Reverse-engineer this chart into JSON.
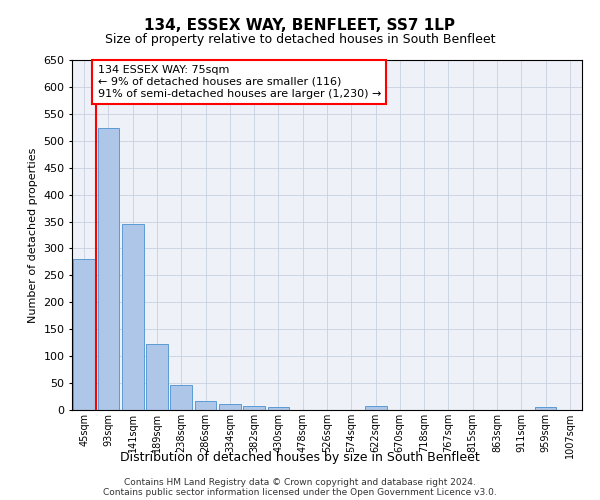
{
  "title": "134, ESSEX WAY, BENFLEET, SS7 1LP",
  "subtitle": "Size of property relative to detached houses in South Benfleet",
  "xlabel": "Distribution of detached houses by size in South Benfleet",
  "ylabel": "Number of detached properties",
  "footer1": "Contains HM Land Registry data © Crown copyright and database right 2024.",
  "footer2": "Contains public sector information licensed under the Open Government Licence v3.0.",
  "annotation_title": "134 ESSEX WAY: 75sqm",
  "annotation_line1": "← 9% of detached houses are smaller (116)",
  "annotation_line2": "91% of semi-detached houses are larger (1,230) →",
  "bar_color": "#aec6e8",
  "bar_edge_color": "#5b9bd5",
  "marker_color": "#ff0000",
  "categories": [
    "45sqm",
    "93sqm",
    "141sqm",
    "189sqm",
    "238sqm",
    "286sqm",
    "334sqm",
    "382sqm",
    "430sqm",
    "478sqm",
    "526sqm",
    "574sqm",
    "622sqm",
    "670sqm",
    "718sqm",
    "767sqm",
    "815sqm",
    "863sqm",
    "911sqm",
    "959sqm",
    "1007sqm"
  ],
  "values": [
    281,
    523,
    346,
    122,
    47,
    16,
    11,
    8,
    5,
    0,
    0,
    0,
    7,
    0,
    0,
    0,
    0,
    0,
    0,
    5,
    0
  ],
  "ylim": [
    0,
    650
  ],
  "yticks": [
    0,
    50,
    100,
    150,
    200,
    250,
    300,
    350,
    400,
    450,
    500,
    550,
    600,
    650
  ],
  "figsize": [
    6.0,
    5.0
  ],
  "dpi": 100
}
